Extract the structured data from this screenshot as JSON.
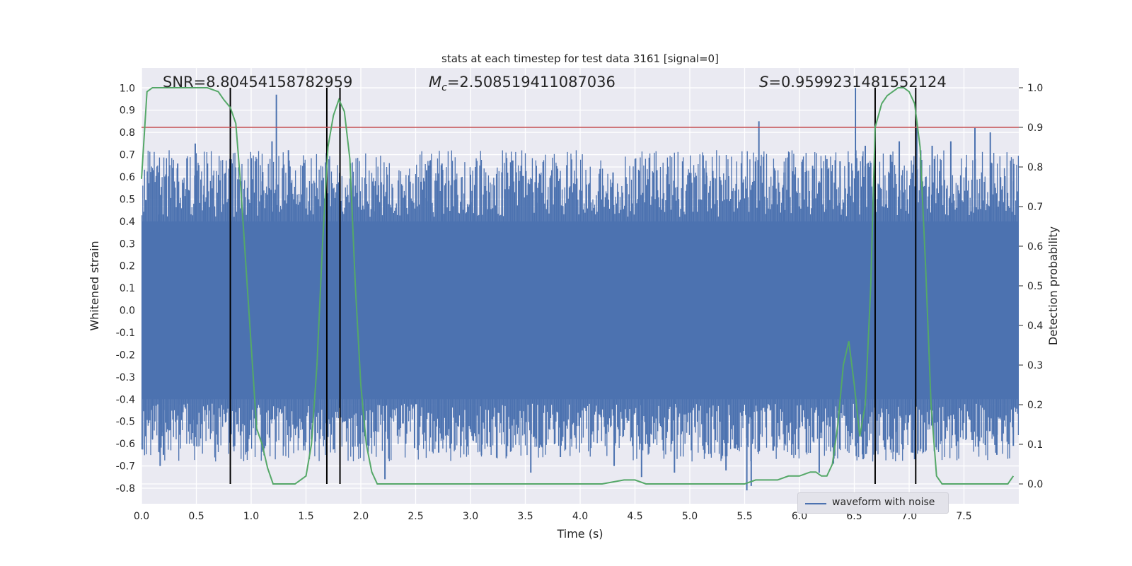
{
  "chart_data": {
    "type": "line",
    "title": "stats at each timestep for test data 3161 [signal=0]",
    "xlabel": "Time (s)",
    "ylabel": "Whitened strain",
    "ylabel_right": "Detection probability",
    "xlim": [
      0,
      8
    ],
    "ylim": [
      -0.87,
      1.09
    ],
    "ylim_right": [
      -0.05,
      1.05
    ],
    "xticks": [
      "0.0",
      "0.5",
      "1.0",
      "1.5",
      "2.0",
      "2.5",
      "3.0",
      "3.5",
      "4.0",
      "4.5",
      "5.0",
      "5.5",
      "6.0",
      "6.5",
      "7.0",
      "7.5"
    ],
    "yticks": [
      "1.0",
      "0.9",
      "0.8",
      "0.7",
      "0.6",
      "0.5",
      "0.4",
      "0.3",
      "0.2",
      "0.1",
      "0.0",
      "-0.1",
      "-0.2",
      "-0.3",
      "-0.4",
      "-0.5",
      "-0.6",
      "-0.7",
      "-0.8"
    ],
    "yticks_right": [
      "1.0",
      "0.9",
      "0.8",
      "0.7",
      "0.6",
      "0.5",
      "0.4",
      "0.3",
      "0.2",
      "0.1",
      "0.0"
    ],
    "annotations": {
      "snr": "SNR=8.80454158782959",
      "mc_symbol": "M",
      "mc_sub": "c",
      "mc_value": "=2.508519411087036",
      "s_symbol": "S",
      "s_value": "=0.9599231481552124"
    },
    "legend": {
      "label": "waveform with noise",
      "position": "lower-right"
    },
    "threshold": {
      "value": 0.9,
      "axis": "right",
      "color": "#c44e52"
    },
    "vertical_markers": [
      0.81,
      1.69,
      1.81,
      6.69,
      7.06
    ],
    "series": [
      {
        "name": "waveform with noise",
        "axis": "left",
        "color": "#4c72b0",
        "core_low": -0.4,
        "core_high": 0.4,
        "peaks": [
          [
            0.16,
            0.43
          ],
          [
            0.33,
            0.66
          ],
          [
            0.49,
            0.75
          ],
          [
            0.57,
            0.56
          ],
          [
            0.81,
            0.68
          ],
          [
            1.1,
            0.58
          ],
          [
            1.19,
            0.76
          ],
          [
            1.23,
            0.97
          ],
          [
            1.34,
            0.72
          ],
          [
            1.6,
            0.55
          ],
          [
            1.81,
            0.57
          ],
          [
            2.12,
            0.56
          ],
          [
            2.6,
            0.63
          ],
          [
            2.74,
            0.66
          ],
          [
            3.0,
            0.61
          ],
          [
            3.6,
            0.65
          ],
          [
            4.3,
            0.62
          ],
          [
            4.7,
            0.63
          ],
          [
            5.15,
            0.62
          ],
          [
            5.63,
            0.85
          ],
          [
            5.86,
            0.62
          ],
          [
            6.12,
            0.65
          ],
          [
            6.25,
            0.68
          ],
          [
            6.37,
            0.67
          ],
          [
            6.51,
            1.0
          ],
          [
            6.6,
            0.74
          ],
          [
            6.83,
            0.7
          ],
          [
            6.91,
            0.76
          ],
          [
            7.07,
            0.82
          ],
          [
            7.21,
            0.74
          ],
          [
            7.38,
            0.76
          ],
          [
            7.6,
            0.82
          ],
          [
            7.74,
            0.8
          ],
          [
            7.95,
            0.58
          ]
        ],
        "troughs": [
          [
            0.1,
            -0.58
          ],
          [
            0.17,
            -0.7
          ],
          [
            0.2,
            -0.65
          ],
          [
            0.35,
            -0.56
          ],
          [
            0.48,
            -0.61
          ],
          [
            1.13,
            -0.61
          ],
          [
            1.48,
            -0.61
          ],
          [
            1.7,
            -0.57
          ],
          [
            2.22,
            -0.76
          ],
          [
            2.49,
            -0.62
          ],
          [
            2.71,
            -0.64
          ],
          [
            3.1,
            -0.65
          ],
          [
            3.55,
            -0.73
          ],
          [
            3.82,
            -0.66
          ],
          [
            4.31,
            -0.7
          ],
          [
            4.56,
            -0.75
          ],
          [
            4.86,
            -0.73
          ],
          [
            5.33,
            -0.72
          ],
          [
            5.52,
            -0.81
          ],
          [
            5.56,
            -0.79
          ],
          [
            5.93,
            -0.65
          ],
          [
            6.18,
            -0.73
          ],
          [
            6.31,
            -0.69
          ],
          [
            6.58,
            -0.67
          ],
          [
            6.89,
            -0.64
          ],
          [
            7.05,
            -0.67
          ],
          [
            7.43,
            -0.61
          ],
          [
            7.8,
            -0.65
          ],
          [
            7.95,
            -0.61
          ]
        ]
      },
      {
        "name": "",
        "axis": "right",
        "color": "#55a868",
        "x": [
          0.0,
          0.05,
          0.1,
          0.2,
          0.3,
          0.4,
          0.5,
          0.6,
          0.7,
          0.75,
          0.81,
          0.86,
          0.9,
          1.0,
          1.05,
          1.1,
          1.15,
          1.2,
          1.25,
          1.3,
          1.4,
          1.45,
          1.5,
          1.55,
          1.6,
          1.65,
          1.7,
          1.75,
          1.8,
          1.85,
          1.9,
          1.95,
          2.0,
          2.05,
          2.1,
          2.15,
          2.2,
          2.25,
          2.3,
          2.4,
          2.5,
          2.8,
          3.0,
          3.1,
          3.3,
          3.5,
          3.8,
          4.0,
          4.2,
          4.4,
          4.5,
          4.6,
          4.8,
          5.0,
          5.2,
          5.4,
          5.5,
          5.6,
          5.8,
          5.9,
          6.0,
          6.1,
          6.15,
          6.2,
          6.25,
          6.3,
          6.35,
          6.4,
          6.45,
          6.5,
          6.55,
          6.6,
          6.65,
          6.69,
          6.75,
          6.8,
          6.85,
          6.9,
          6.95,
          7.0,
          7.05,
          7.1,
          7.15,
          7.2,
          7.25,
          7.3,
          7.4,
          7.6,
          7.8,
          7.9,
          7.95
        ],
        "y": [
          0.77,
          0.99,
          1.0,
          1.0,
          1.0,
          1.0,
          1.0,
          1.0,
          0.99,
          0.97,
          0.95,
          0.91,
          0.77,
          0.35,
          0.14,
          0.1,
          0.04,
          0.0,
          0.0,
          0.0,
          0.0,
          0.01,
          0.02,
          0.1,
          0.3,
          0.6,
          0.85,
          0.93,
          0.97,
          0.94,
          0.82,
          0.5,
          0.25,
          0.1,
          0.03,
          0.0,
          0.0,
          0.0,
          0.0,
          0.0,
          0.0,
          0.0,
          0.0,
          0.0,
          0.0,
          0.0,
          0.0,
          0.0,
          0.0,
          0.01,
          0.01,
          0.0,
          0.0,
          0.0,
          0.0,
          0.0,
          0.0,
          0.01,
          0.01,
          0.02,
          0.02,
          0.03,
          0.03,
          0.02,
          0.02,
          0.05,
          0.15,
          0.3,
          0.36,
          0.25,
          0.12,
          0.2,
          0.5,
          0.9,
          0.96,
          0.98,
          0.99,
          1.0,
          1.0,
          0.99,
          0.96,
          0.85,
          0.55,
          0.2,
          0.02,
          0.0,
          0.0,
          0.0,
          0.0,
          0.0,
          0.02
        ]
      }
    ]
  }
}
